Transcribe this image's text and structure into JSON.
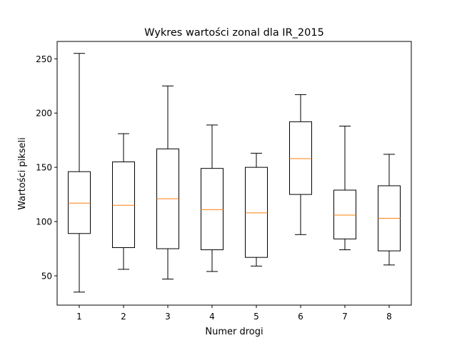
{
  "chart_data": {
    "type": "box",
    "title": "Wykres wartości zonal dla IR_2015",
    "xlabel": "Numer drogi",
    "ylabel": "Wartości pikseli",
    "ylim": [
      23,
      266
    ],
    "yticks": [
      50,
      100,
      150,
      200,
      250
    ],
    "grid": false,
    "colors": {
      "box": "#000000",
      "median": "#ff7f0e"
    },
    "series": [
      {
        "category": "1",
        "whisker_low": 35,
        "q1": 89,
        "median": 117,
        "q3": 146,
        "whisker_high": 255
      },
      {
        "category": "2",
        "whisker_low": 56,
        "q1": 76,
        "median": 115,
        "q3": 155,
        "whisker_high": 181
      },
      {
        "category": "3",
        "whisker_low": 47,
        "q1": 75,
        "median": 121,
        "q3": 167,
        "whisker_high": 225
      },
      {
        "category": "4",
        "whisker_low": 54,
        "q1": 74,
        "median": 111,
        "q3": 149,
        "whisker_high": 189
      },
      {
        "category": "5",
        "whisker_low": 59,
        "q1": 67,
        "median": 108,
        "q3": 150,
        "whisker_high": 163
      },
      {
        "category": "6",
        "whisker_low": 88,
        "q1": 125,
        "median": 158,
        "q3": 192,
        "whisker_high": 217
      },
      {
        "category": "7",
        "whisker_low": 74,
        "q1": 84,
        "median": 106,
        "q3": 129,
        "whisker_high": 188
      },
      {
        "category": "8",
        "whisker_low": 60,
        "q1": 73,
        "median": 103,
        "q3": 133,
        "whisker_high": 162
      }
    ]
  }
}
